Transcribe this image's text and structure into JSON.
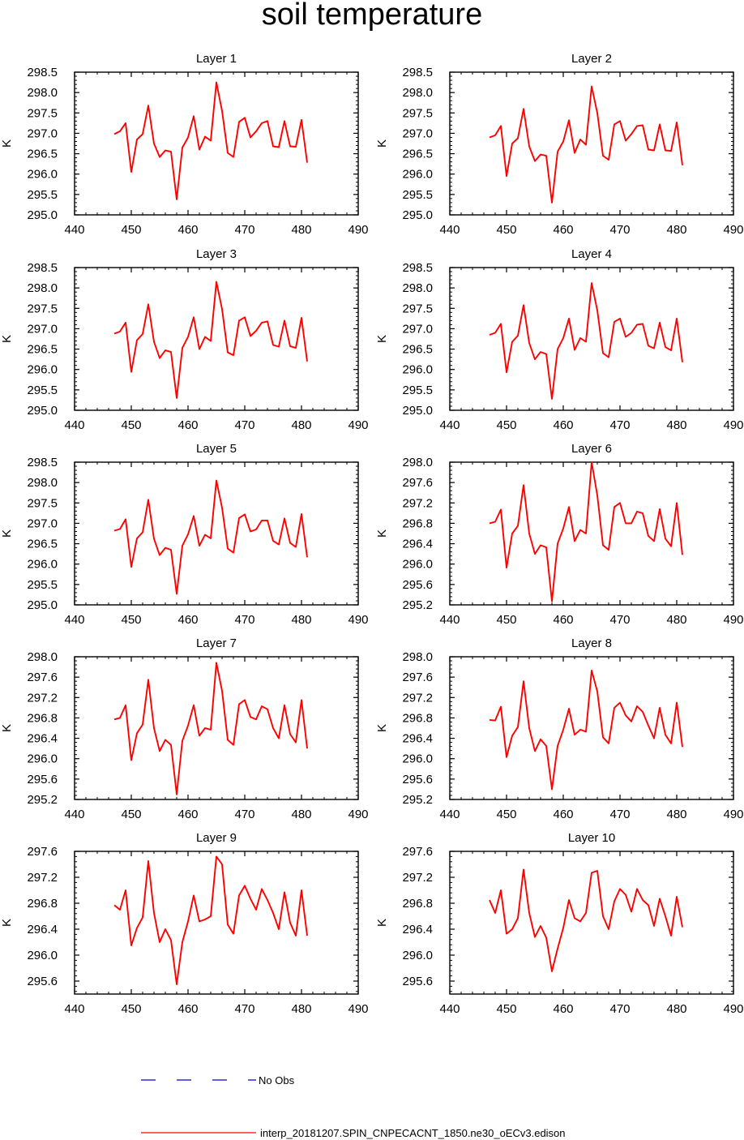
{
  "figure": {
    "title": "soil temperature",
    "legend": {
      "obs_label": "No Obs",
      "model_label": "interp_20181207.SPIN_CNPECACNT_1850.ne30_oECv3.edison"
    },
    "colors": {
      "model": "#ff0000",
      "obs": "#0000cc",
      "axis": "#000000"
    }
  },
  "chart_data": [
    {
      "type": "line",
      "title": "Layer 1",
      "ylabel": "K",
      "xlim": [
        440,
        490
      ],
      "xticks": [
        440,
        450,
        460,
        470,
        480,
        490
      ],
      "ylim": [
        295.0,
        298.5
      ],
      "yticks": [
        "295.0",
        "295.5",
        "296.0",
        "296.5",
        "297.0",
        "297.5",
        "298.0",
        "298.5"
      ],
      "x": [
        447,
        448,
        449,
        450,
        451,
        452,
        453,
        454,
        455,
        456,
        457,
        458,
        459,
        460,
        461,
        462,
        463,
        464,
        465,
        466,
        467,
        468,
        469,
        470,
        471,
        472,
        473,
        474,
        475,
        476,
        477,
        478,
        479,
        480,
        481
      ],
      "series": [
        {
          "name": "interp_20181207.SPIN_CNPECACNT_1850.ne30_oECv3.edison",
          "values": [
            296.98,
            297.05,
            297.25,
            296.05,
            296.85,
            296.98,
            297.68,
            296.75,
            296.42,
            296.58,
            296.55,
            295.38,
            296.65,
            296.9,
            297.42,
            296.6,
            296.92,
            296.82,
            298.25,
            297.55,
            296.52,
            296.42,
            297.28,
            297.38,
            296.9,
            297.05,
            297.25,
            297.3,
            296.68,
            296.66,
            297.3,
            296.68,
            296.67,
            297.33,
            296.28
          ]
        }
      ]
    },
    {
      "type": "line",
      "title": "Layer 2",
      "ylabel": "K",
      "xlim": [
        440,
        490
      ],
      "xticks": [
        440,
        450,
        460,
        470,
        480,
        490
      ],
      "ylim": [
        295.0,
        298.5
      ],
      "yticks": [
        "295.0",
        "295.5",
        "296.0",
        "296.5",
        "297.0",
        "297.5",
        "298.0",
        "298.5"
      ],
      "x": [
        447,
        448,
        449,
        450,
        451,
        452,
        453,
        454,
        455,
        456,
        457,
        458,
        459,
        460,
        461,
        462,
        463,
        464,
        465,
        466,
        467,
        468,
        469,
        470,
        471,
        472,
        473,
        474,
        475,
        476,
        477,
        478,
        479,
        480,
        481
      ],
      "series": [
        {
          "name": "interp_20181207.SPIN_CNPECACNT_1850.ne30_oECv3.edison",
          "values": [
            296.9,
            296.95,
            297.18,
            295.95,
            296.75,
            296.88,
            297.6,
            296.68,
            296.32,
            296.48,
            296.45,
            295.3,
            296.55,
            296.8,
            297.32,
            296.52,
            296.85,
            296.72,
            298.15,
            297.5,
            296.45,
            296.35,
            297.22,
            297.3,
            296.82,
            296.98,
            297.18,
            297.2,
            296.6,
            296.58,
            297.22,
            296.58,
            296.57,
            297.27,
            296.22
          ]
        }
      ]
    },
    {
      "type": "line",
      "title": "Layer 3",
      "ylabel": "K",
      "xlim": [
        440,
        490
      ],
      "xticks": [
        440,
        450,
        460,
        470,
        480,
        490
      ],
      "ylim": [
        295.0,
        298.5
      ],
      "yticks": [
        "295.0",
        "295.5",
        "296.0",
        "296.5",
        "297.0",
        "297.5",
        "298.0",
        "298.5"
      ],
      "x": [
        447,
        448,
        449,
        450,
        451,
        452,
        453,
        454,
        455,
        456,
        457,
        458,
        459,
        460,
        461,
        462,
        463,
        464,
        465,
        466,
        467,
        468,
        469,
        470,
        471,
        472,
        473,
        474,
        475,
        476,
        477,
        478,
        479,
        480,
        481
      ],
      "series": [
        {
          "name": "interp_20181207.SPIN_CNPECACNT_1850.ne30_oECv3.edison",
          "values": [
            296.88,
            296.93,
            297.15,
            295.94,
            296.72,
            296.87,
            297.6,
            296.68,
            296.28,
            296.47,
            296.43,
            295.3,
            296.53,
            296.8,
            297.28,
            296.5,
            296.8,
            296.7,
            298.15,
            297.48,
            296.42,
            296.35,
            297.2,
            297.28,
            296.82,
            296.95,
            297.15,
            297.18,
            296.6,
            296.56,
            297.2,
            296.57,
            296.53,
            297.27,
            296.2
          ]
        }
      ]
    },
    {
      "type": "line",
      "title": "Layer 4",
      "ylabel": "K",
      "xlim": [
        440,
        490
      ],
      "xticks": [
        440,
        450,
        460,
        470,
        480,
        490
      ],
      "ylim": [
        295.0,
        298.5
      ],
      "yticks": [
        "295.0",
        "295.5",
        "296.0",
        "296.5",
        "297.0",
        "297.5",
        "298.0",
        "298.5"
      ],
      "x": [
        447,
        448,
        449,
        450,
        451,
        452,
        453,
        454,
        455,
        456,
        457,
        458,
        459,
        460,
        461,
        462,
        463,
        464,
        465,
        466,
        467,
        468,
        469,
        470,
        471,
        472,
        473,
        474,
        475,
        476,
        477,
        478,
        479,
        480,
        481
      ],
      "series": [
        {
          "name": "interp_20181207.SPIN_CNPECACNT_1850.ne30_oECv3.edison",
          "values": [
            296.85,
            296.9,
            297.12,
            295.93,
            296.68,
            296.83,
            297.58,
            296.65,
            296.25,
            296.43,
            296.38,
            295.28,
            296.5,
            296.77,
            297.25,
            296.48,
            296.77,
            296.68,
            298.12,
            297.45,
            296.4,
            296.3,
            297.17,
            297.25,
            296.8,
            296.9,
            297.1,
            297.12,
            296.58,
            296.52,
            297.15,
            296.55,
            296.47,
            297.25,
            296.18
          ]
        }
      ]
    },
    {
      "type": "line",
      "title": "Layer 5",
      "ylabel": "K",
      "xlim": [
        440,
        490
      ],
      "xticks": [
        440,
        450,
        460,
        470,
        480,
        490
      ],
      "ylim": [
        295.0,
        298.5
      ],
      "yticks": [
        "295.0",
        "295.5",
        "296.0",
        "296.5",
        "297.0",
        "297.5",
        "298.0",
        "298.5"
      ],
      "x": [
        447,
        448,
        449,
        450,
        451,
        452,
        453,
        454,
        455,
        456,
        457,
        458,
        459,
        460,
        461,
        462,
        463,
        464,
        465,
        466,
        467,
        468,
        469,
        470,
        471,
        472,
        473,
        474,
        475,
        476,
        477,
        478,
        479,
        480,
        481
      ],
      "series": [
        {
          "name": "interp_20181207.SPIN_CNPECACNT_1850.ne30_oECv3.edison",
          "values": [
            296.82,
            296.86,
            297.1,
            295.93,
            296.63,
            296.78,
            297.58,
            296.62,
            296.22,
            296.4,
            296.35,
            295.27,
            296.45,
            296.73,
            297.18,
            296.45,
            296.72,
            296.63,
            298.05,
            297.38,
            296.38,
            296.28,
            297.13,
            297.22,
            296.8,
            296.85,
            297.07,
            297.07,
            296.57,
            296.48,
            297.12,
            296.52,
            296.42,
            297.23,
            296.17
          ]
        }
      ]
    },
    {
      "type": "line",
      "title": "Layer 6",
      "ylabel": "K",
      "xlim": [
        440,
        490
      ],
      "xticks": [
        440,
        450,
        460,
        470,
        480,
        490
      ],
      "ylim": [
        295.2,
        298.0
      ],
      "yticks": [
        "295.2",
        "295.6",
        "296.0",
        "296.4",
        "296.8",
        "297.2",
        "297.6",
        "298.0"
      ],
      "x": [
        447,
        448,
        449,
        450,
        451,
        452,
        453,
        454,
        455,
        456,
        457,
        458,
        459,
        460,
        461,
        462,
        463,
        464,
        465,
        466,
        467,
        468,
        469,
        470,
        471,
        472,
        473,
        474,
        475,
        476,
        477,
        478,
        479,
        480,
        481
      ],
      "series": [
        {
          "name": "interp_20181207.SPIN_CNPECACNT_1850.ne30_oECv3.edison",
          "values": [
            296.8,
            296.83,
            297.07,
            295.93,
            296.6,
            296.75,
            297.55,
            296.6,
            296.2,
            296.37,
            296.33,
            295.27,
            296.4,
            296.7,
            297.12,
            296.45,
            296.67,
            296.6,
            298.0,
            297.35,
            296.37,
            296.28,
            297.12,
            297.2,
            296.8,
            296.8,
            297.03,
            297.0,
            296.55,
            296.45,
            297.08,
            296.5,
            296.35,
            297.2,
            296.18
          ]
        }
      ]
    },
    {
      "type": "line",
      "title": "Layer 7",
      "ylabel": "K",
      "xlim": [
        440,
        490
      ],
      "xticks": [
        440,
        450,
        460,
        470,
        480,
        490
      ],
      "ylim": [
        295.2,
        298.0
      ],
      "yticks": [
        "295.2",
        "295.6",
        "296.0",
        "296.4",
        "296.8",
        "297.2",
        "297.6",
        "298.0"
      ],
      "x": [
        447,
        448,
        449,
        450,
        451,
        452,
        453,
        454,
        455,
        456,
        457,
        458,
        459,
        460,
        461,
        462,
        463,
        464,
        465,
        466,
        467,
        468,
        469,
        470,
        471,
        472,
        473,
        474,
        475,
        476,
        477,
        478,
        479,
        480,
        481
      ],
      "series": [
        {
          "name": "interp_20181207.SPIN_CNPECACNT_1850.ne30_oECv3.edison",
          "values": [
            296.77,
            296.8,
            297.05,
            295.97,
            296.5,
            296.67,
            297.55,
            296.6,
            296.15,
            296.37,
            296.27,
            295.3,
            296.35,
            296.65,
            297.05,
            296.45,
            296.6,
            296.57,
            297.88,
            297.33,
            296.37,
            296.27,
            297.07,
            297.15,
            296.82,
            296.77,
            297.03,
            296.97,
            296.6,
            296.4,
            297.05,
            296.48,
            296.32,
            297.15,
            296.2
          ]
        }
      ]
    },
    {
      "type": "line",
      "title": "Layer 8",
      "ylabel": "K",
      "xlim": [
        440,
        490
      ],
      "xticks": [
        440,
        450,
        460,
        470,
        480,
        490
      ],
      "ylim": [
        295.2,
        298.0
      ],
      "yticks": [
        "295.2",
        "295.6",
        "296.0",
        "296.4",
        "296.8",
        "297.2",
        "297.6",
        "298.0"
      ],
      "x": [
        447,
        448,
        449,
        450,
        451,
        452,
        453,
        454,
        455,
        456,
        457,
        458,
        459,
        460,
        461,
        462,
        463,
        464,
        465,
        466,
        467,
        468,
        469,
        470,
        471,
        472,
        473,
        474,
        475,
        476,
        477,
        478,
        479,
        480,
        481
      ],
      "series": [
        {
          "name": "interp_20181207.SPIN_CNPECACNT_1850.ne30_oECv3.edison",
          "values": [
            296.76,
            296.75,
            297.02,
            296.03,
            296.45,
            296.62,
            297.52,
            296.6,
            296.15,
            296.38,
            296.25,
            295.4,
            296.25,
            296.57,
            296.98,
            296.47,
            296.57,
            296.53,
            297.73,
            297.32,
            296.42,
            296.3,
            297.0,
            297.1,
            296.85,
            296.73,
            297.03,
            296.92,
            296.65,
            296.4,
            297.0,
            296.47,
            296.3,
            297.1,
            296.23
          ]
        }
      ]
    },
    {
      "type": "line",
      "title": "Layer 9",
      "ylabel": "K",
      "xlim": [
        440,
        490
      ],
      "xticks": [
        440,
        450,
        460,
        470,
        480,
        490
      ],
      "ylim": [
        295.4,
        297.6
      ],
      "yticks": [
        "295.6",
        "296.0",
        "296.4",
        "296.8",
        "297.2",
        "297.6"
      ],
      "x": [
        447,
        448,
        449,
        450,
        451,
        452,
        453,
        454,
        455,
        456,
        457,
        458,
        459,
        460,
        461,
        462,
        463,
        464,
        465,
        466,
        467,
        468,
        469,
        470,
        471,
        472,
        473,
        474,
        475,
        476,
        477,
        478,
        479,
        480,
        481
      ],
      "series": [
        {
          "name": "interp_20181207.SPIN_CNPECACNT_1850.ne30_oECv3.edison",
          "values": [
            296.77,
            296.7,
            297.0,
            296.15,
            296.42,
            296.58,
            297.45,
            296.65,
            296.2,
            296.4,
            296.23,
            295.55,
            296.2,
            296.52,
            296.92,
            296.52,
            296.55,
            296.6,
            297.52,
            297.4,
            296.47,
            296.33,
            296.92,
            297.07,
            296.87,
            296.7,
            297.02,
            296.85,
            296.65,
            296.4,
            296.97,
            296.5,
            296.3,
            297.0,
            296.3
          ]
        }
      ]
    },
    {
      "type": "line",
      "title": "Layer 10",
      "ylabel": "K",
      "xlim": [
        440,
        490
      ],
      "xticks": [
        440,
        450,
        460,
        470,
        480,
        490
      ],
      "ylim": [
        295.4,
        297.6
      ],
      "yticks": [
        "295.6",
        "296.0",
        "296.4",
        "296.8",
        "297.2",
        "297.6"
      ],
      "x": [
        447,
        448,
        449,
        450,
        451,
        452,
        453,
        454,
        455,
        456,
        457,
        458,
        459,
        460,
        461,
        462,
        463,
        464,
        465,
        466,
        467,
        468,
        469,
        470,
        471,
        472,
        473,
        474,
        475,
        476,
        477,
        478,
        479,
        480,
        481
      ],
      "series": [
        {
          "name": "interp_20181207.SPIN_CNPECACNT_1850.ne30_oECv3.edison",
          "values": [
            296.85,
            296.65,
            297.0,
            296.33,
            296.4,
            296.57,
            297.32,
            296.65,
            296.28,
            296.45,
            296.27,
            295.75,
            296.1,
            296.42,
            296.85,
            296.57,
            296.52,
            296.65,
            297.27,
            297.3,
            296.6,
            296.4,
            296.83,
            297.02,
            296.93,
            296.67,
            297.02,
            296.85,
            296.77,
            296.45,
            296.87,
            296.6,
            296.3,
            296.9,
            296.43
          ]
        }
      ]
    }
  ]
}
